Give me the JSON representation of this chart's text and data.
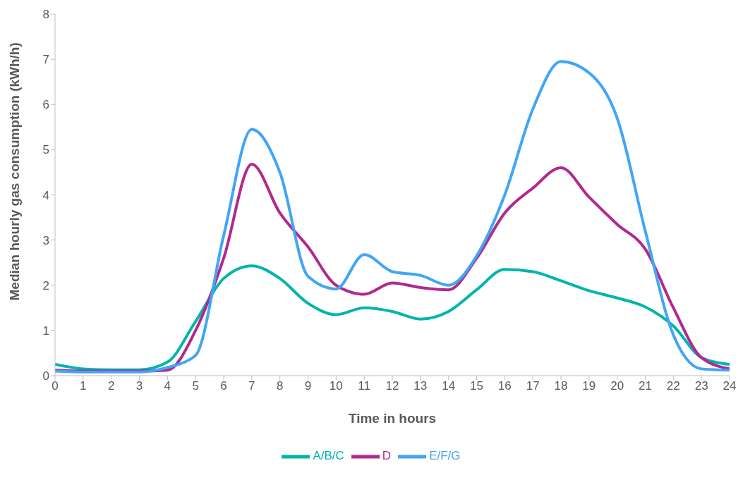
{
  "chart_data": {
    "type": "line",
    "xlabel": "Time in hours",
    "ylabel": "Median hourly gas consumption (kWh/h)",
    "x": [
      0,
      1,
      2,
      3,
      4,
      5,
      6,
      7,
      8,
      9,
      10,
      11,
      12,
      13,
      14,
      15,
      16,
      17,
      18,
      19,
      20,
      21,
      22,
      23,
      24
    ],
    "xlim": [
      0,
      24
    ],
    "xticks": [
      0,
      1,
      2,
      3,
      4,
      5,
      6,
      7,
      8,
      9,
      10,
      11,
      12,
      13,
      14,
      15,
      16,
      17,
      18,
      19,
      20,
      21,
      22,
      23,
      24
    ],
    "ylim": [
      0,
      8
    ],
    "yticks": [
      0,
      1,
      2,
      3,
      4,
      5,
      6,
      7,
      8
    ],
    "grid": false,
    "legend": "bottom",
    "marker": "none",
    "line_style": "solid",
    "series": [
      {
        "name": "A/B/C",
        "color": "#00b5ad",
        "values": [
          0.25,
          0.15,
          0.13,
          0.13,
          0.3,
          1.2,
          2.15,
          2.43,
          2.15,
          1.6,
          1.35,
          1.5,
          1.42,
          1.25,
          1.42,
          1.9,
          2.35,
          2.3,
          2.1,
          1.88,
          1.72,
          1.52,
          1.1,
          0.4,
          0.25
        ]
      },
      {
        "name": "D",
        "color": "#b0298f",
        "values": [
          0.12,
          0.1,
          0.1,
          0.1,
          0.12,
          1.0,
          2.6,
          4.68,
          3.6,
          2.85,
          2.0,
          1.8,
          2.05,
          1.95,
          1.9,
          2.6,
          3.6,
          4.15,
          4.6,
          3.95,
          3.35,
          2.8,
          1.5,
          0.4,
          0.15
        ]
      },
      {
        "name": "E/F/G",
        "color": "#42a5f5",
        "values": [
          0.1,
          0.08,
          0.08,
          0.08,
          0.18,
          0.45,
          3.1,
          5.45,
          4.5,
          2.2,
          1.92,
          2.68,
          2.3,
          2.22,
          2.0,
          2.65,
          4.0,
          5.9,
          6.95,
          6.7,
          5.7,
          3.2,
          0.9,
          0.15,
          0.12
        ]
      }
    ]
  }
}
